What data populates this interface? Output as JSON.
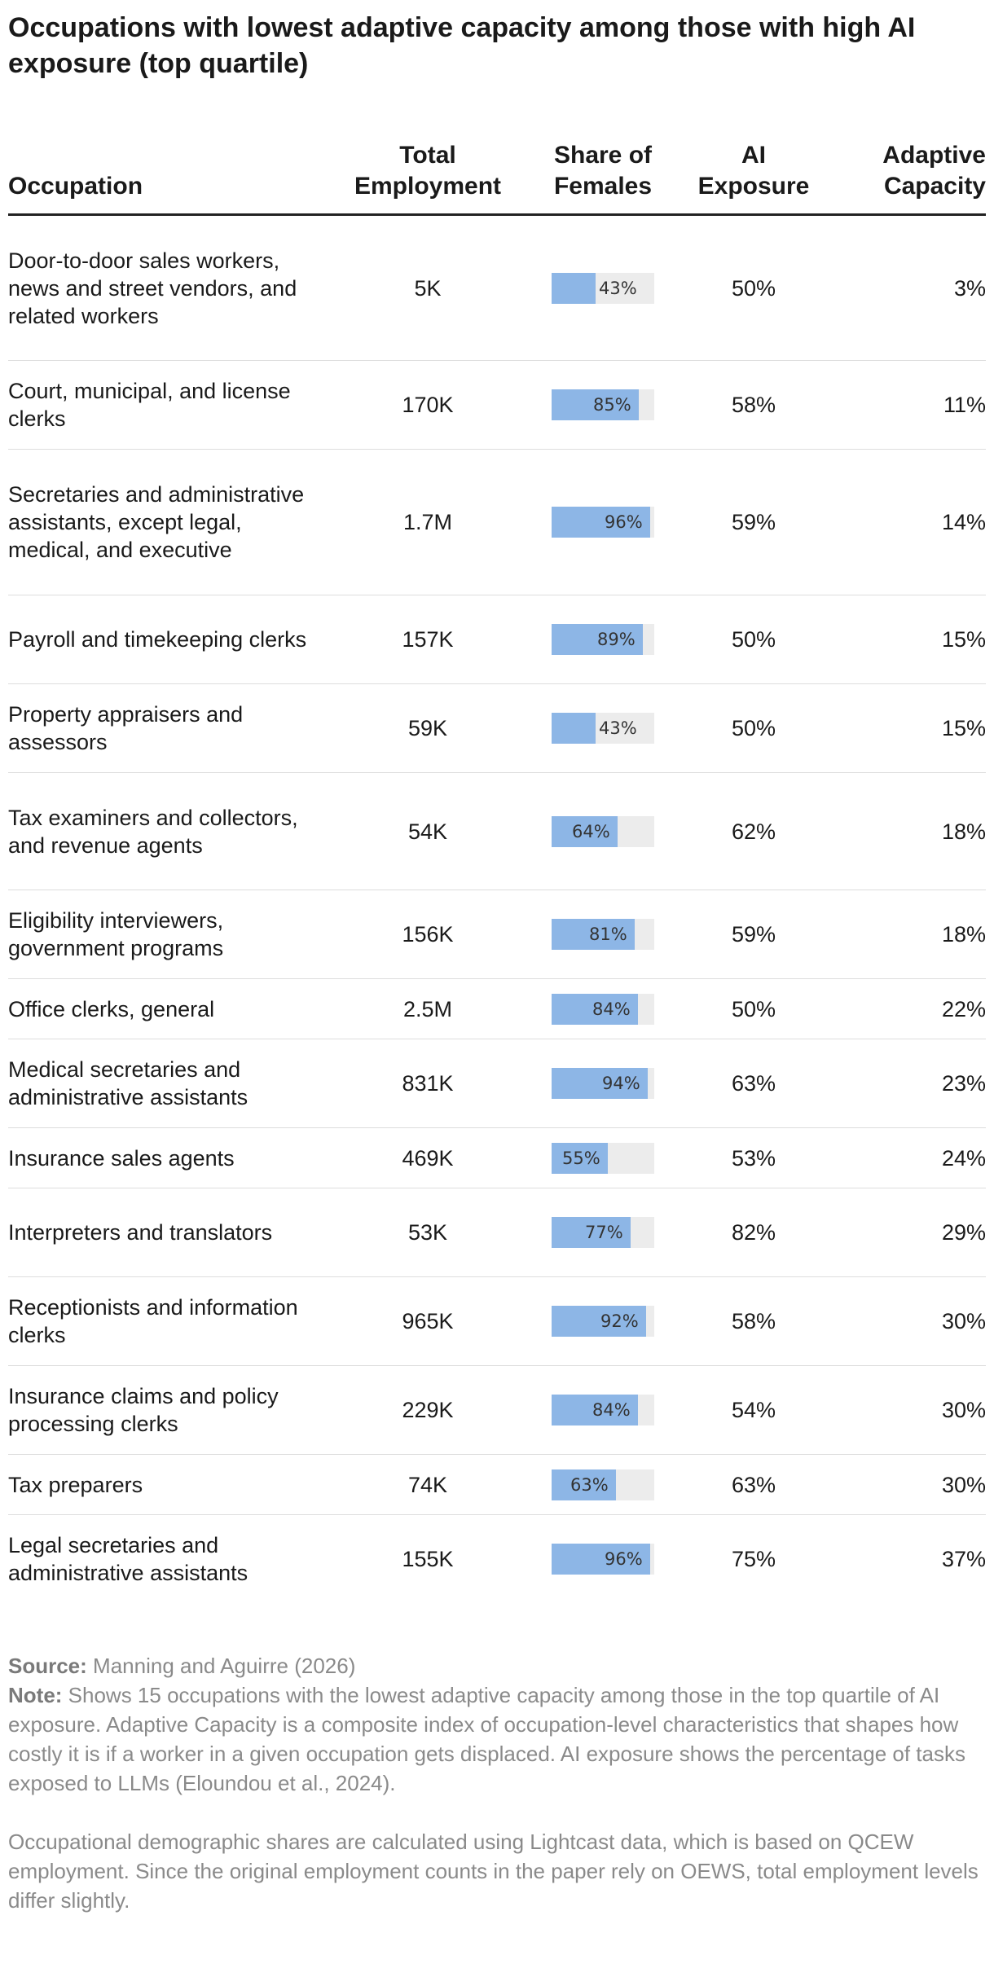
{
  "title": "Occupations with lowest adaptive capacity among those with high AI exposure (top quartile)",
  "columns": {
    "occupation": "Occupation",
    "employment": "Total Employment",
    "females": "Share of Females",
    "exposure": "AI Exposure",
    "capacity": "Adaptive Capacity"
  },
  "colors": {
    "bar_fill": "#8db6e6",
    "bar_track": "#ececec"
  },
  "chart_data": {
    "type": "table",
    "title": "Occupations with lowest adaptive capacity among those with high AI exposure (top quartile)",
    "columns": [
      "Occupation",
      "Total Employment",
      "Share of Females",
      "AI Exposure",
      "Adaptive Capacity"
    ],
    "rows": [
      {
        "occupation": "Door-to-door sales workers, news and street vendors, and related workers",
        "employment": "5K",
        "female_share": 43,
        "female_label": "43%",
        "exposure": "50%",
        "capacity": "3%"
      },
      {
        "occupation": "Court, municipal, and license clerks",
        "employment": "170K",
        "female_share": 85,
        "female_label": "85%",
        "exposure": "58%",
        "capacity": "11%"
      },
      {
        "occupation": "Secretaries and administrative assistants, except legal, medical, and executive",
        "employment": "1.7M",
        "female_share": 96,
        "female_label": "96%",
        "exposure": "59%",
        "capacity": "14%"
      },
      {
        "occupation": "Payroll and timekeeping clerks",
        "employment": "157K",
        "female_share": 89,
        "female_label": "89%",
        "exposure": "50%",
        "capacity": "15%"
      },
      {
        "occupation": "Property appraisers and assessors",
        "employment": "59K",
        "female_share": 43,
        "female_label": "43%",
        "exposure": "50%",
        "capacity": "15%"
      },
      {
        "occupation": "Tax examiners and collectors, and revenue agents",
        "employment": "54K",
        "female_share": 64,
        "female_label": "64%",
        "exposure": "62%",
        "capacity": "18%"
      },
      {
        "occupation": "Eligibility interviewers, government programs",
        "employment": "156K",
        "female_share": 81,
        "female_label": "81%",
        "exposure": "59%",
        "capacity": "18%"
      },
      {
        "occupation": "Office clerks, general",
        "employment": "2.5M",
        "female_share": 84,
        "female_label": "84%",
        "exposure": "50%",
        "capacity": "22%"
      },
      {
        "occupation": "Medical secretaries and administrative assistants",
        "employment": "831K",
        "female_share": 94,
        "female_label": "94%",
        "exposure": "63%",
        "capacity": "23%"
      },
      {
        "occupation": "Insurance sales agents",
        "employment": "469K",
        "female_share": 55,
        "female_label": "55%",
        "exposure": "53%",
        "capacity": "24%"
      },
      {
        "occupation": "Interpreters and translators",
        "employment": "53K",
        "female_share": 77,
        "female_label": "77%",
        "exposure": "82%",
        "capacity": "29%"
      },
      {
        "occupation": "Receptionists and information clerks",
        "employment": "965K",
        "female_share": 92,
        "female_label": "92%",
        "exposure": "58%",
        "capacity": "30%"
      },
      {
        "occupation": "Insurance claims and policy processing clerks",
        "employment": "229K",
        "female_share": 84,
        "female_label": "84%",
        "exposure": "54%",
        "capacity": "30%"
      },
      {
        "occupation": "Tax preparers",
        "employment": "74K",
        "female_share": 63,
        "female_label": "63%",
        "exposure": "63%",
        "capacity": "30%"
      },
      {
        "occupation": "Legal secretaries and administrative assistants",
        "employment": "155K",
        "female_share": 96,
        "female_label": "96%",
        "exposure": "75%",
        "capacity": "37%"
      }
    ]
  },
  "notes": {
    "source_label": "Source:",
    "source_text": "Manning and Aguirre (2026)",
    "note_label": "Note:",
    "note_text": "Shows 15 occupations with the lowest adaptive capacity among those in the top quartile of AI exposure. Adaptive Capacity is a composite index of occupation-level characteristics that shapes how costly it is if a worker in a given occupation gets displaced. AI exposure shows the percentage of tasks exposed to LLMs (Eloundou et al., 2024).",
    "footnote": "Occupational demographic shares are calculated using Lightcast data, which is based on QCEW employment. Since the original employment counts in the paper rely on OEWS, total employment levels differ slightly."
  }
}
